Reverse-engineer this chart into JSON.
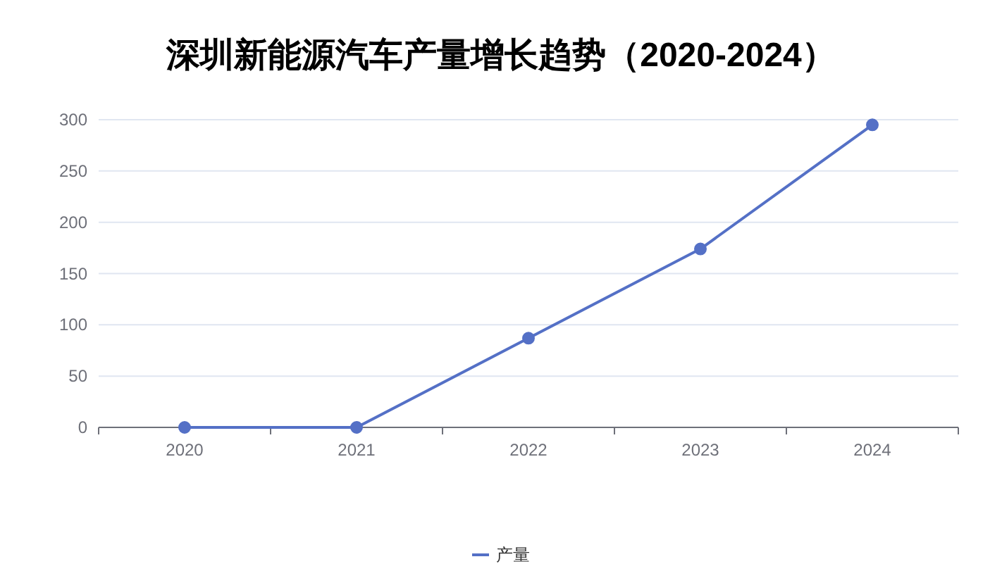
{
  "chart_data": {
    "type": "line",
    "title": "深圳新能源汽车产量增长趋势（2020-2024）",
    "categories": [
      "2020",
      "2021",
      "2022",
      "2023",
      "2024"
    ],
    "series": [
      {
        "name": "产量",
        "color": "#5470c6",
        "values": [
          0,
          0,
          87,
          174,
          295
        ]
      }
    ],
    "ylim": [
      0,
      300
    ],
    "yticks": [
      0,
      50,
      100,
      150,
      200,
      250,
      300
    ],
    "grid": "y",
    "legend": "bottom",
    "marker": "circle",
    "line_style": "solid"
  }
}
